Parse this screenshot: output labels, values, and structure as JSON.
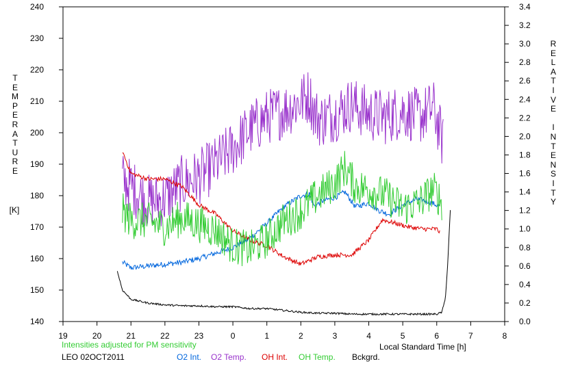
{
  "chart_data": {
    "type": "line",
    "note": "Intensities adjusted for PM sensitivity",
    "station": "LEO 02OCT2011",
    "xlabel": "Local Standard Time [h]",
    "xticks": [
      "19",
      "20",
      "21",
      "22",
      "23",
      "0",
      "1",
      "2",
      "3",
      "4",
      "5",
      "6",
      "7",
      "8"
    ],
    "xlim": [
      19,
      32
    ],
    "ylabel_left_letters": [
      "T",
      "E",
      "M",
      "P",
      "E",
      "R",
      "A",
      "T",
      "U",
      "R",
      "E"
    ],
    "ylabel_left_unit": "[K]",
    "yticks_left": [
      "140",
      "150",
      "160",
      "170",
      "180",
      "190",
      "200",
      "210",
      "220",
      "230",
      "240"
    ],
    "ylim_left": [
      140,
      240
    ],
    "ylabel_right_words": [
      [
        "R",
        "E",
        "L",
        "A",
        "T",
        "I",
        "V",
        "E"
      ],
      [
        "I",
        "N",
        "T",
        "E",
        "N",
        "S",
        "I",
        "T",
        "Y"
      ]
    ],
    "yticks_right": [
      "0.0",
      "0.2",
      "0.4",
      "0.6",
      "0.8",
      "1.0",
      "1.2",
      "1.4",
      "1.6",
      "1.8",
      "2.0",
      "2.2",
      "2.4",
      "2.6",
      "2.8",
      "3.0",
      "3.2",
      "3.4"
    ],
    "ylim_right": [
      0,
      3.4
    ],
    "series": [
      {
        "name": "O2 Int.",
        "axis": "right",
        "color": "#0066dd",
        "noise": 0.03,
        "points": [
          [
            20.75,
            0.64
          ],
          [
            21.0,
            0.58
          ],
          [
            21.5,
            0.6
          ],
          [
            22.0,
            0.62
          ],
          [
            22.5,
            0.64
          ],
          [
            23.0,
            0.68
          ],
          [
            23.5,
            0.74
          ],
          [
            24.0,
            0.8
          ],
          [
            24.5,
            0.9
          ],
          [
            25.0,
            1.06
          ],
          [
            25.5,
            1.24
          ],
          [
            26.0,
            1.36
          ],
          [
            26.25,
            1.38
          ],
          [
            26.4,
            1.24
          ],
          [
            26.6,
            1.3
          ],
          [
            27.0,
            1.34
          ],
          [
            27.3,
            1.4
          ],
          [
            27.6,
            1.24
          ],
          [
            28.0,
            1.28
          ],
          [
            28.3,
            1.2
          ],
          [
            28.6,
            1.16
          ],
          [
            29.0,
            1.26
          ],
          [
            29.4,
            1.32
          ],
          [
            29.75,
            1.3
          ],
          [
            30.1,
            1.24
          ]
        ]
      },
      {
        "name": "O2 Temp.",
        "axis": "left",
        "color": "#9933cc",
        "noise": 9,
        "points": [
          [
            20.75,
            185
          ],
          [
            21.0,
            183
          ],
          [
            21.5,
            178
          ],
          [
            22.0,
            179
          ],
          [
            22.5,
            184
          ],
          [
            23.0,
            186
          ],
          [
            23.5,
            190
          ],
          [
            24.0,
            195
          ],
          [
            24.5,
            201
          ],
          [
            25.0,
            205
          ],
          [
            25.5,
            207
          ],
          [
            26.0,
            210
          ],
          [
            26.25,
            212
          ],
          [
            26.4,
            206
          ],
          [
            26.6,
            204
          ],
          [
            27.0,
            206
          ],
          [
            27.5,
            209
          ],
          [
            28.0,
            206
          ],
          [
            28.5,
            205
          ],
          [
            29.0,
            207
          ],
          [
            29.5,
            205
          ],
          [
            29.9,
            208
          ],
          [
            30.2,
            196
          ]
        ]
      },
      {
        "name": "OH Int.",
        "axis": "right",
        "color": "#dd0000",
        "noise": 0.025,
        "points": [
          [
            20.75,
            1.84
          ],
          [
            21.0,
            1.6
          ],
          [
            21.5,
            1.54
          ],
          [
            22.0,
            1.54
          ],
          [
            22.5,
            1.46
          ],
          [
            23.0,
            1.26
          ],
          [
            23.5,
            1.16
          ],
          [
            24.0,
            0.98
          ],
          [
            24.5,
            0.88
          ],
          [
            25.0,
            0.82
          ],
          [
            25.5,
            0.7
          ],
          [
            26.0,
            0.62
          ],
          [
            26.5,
            0.7
          ],
          [
            27.0,
            0.72
          ],
          [
            27.5,
            0.72
          ],
          [
            28.0,
            0.88
          ],
          [
            28.4,
            1.1
          ],
          [
            28.8,
            1.06
          ],
          [
            29.2,
            1.02
          ],
          [
            29.6,
            1.0
          ],
          [
            30.0,
            1.0
          ],
          [
            30.1,
            0.96
          ]
        ]
      },
      {
        "name": "OH Temp.",
        "axis": "left",
        "color": "#33cc33",
        "noise": 6,
        "points": [
          [
            20.75,
            175
          ],
          [
            21.0,
            172
          ],
          [
            21.5,
            172
          ],
          [
            22.0,
            170
          ],
          [
            22.5,
            173
          ],
          [
            23.0,
            171
          ],
          [
            23.5,
            169
          ],
          [
            24.0,
            164
          ],
          [
            24.5,
            163
          ],
          [
            25.0,
            166
          ],
          [
            25.5,
            172
          ],
          [
            26.0,
            175
          ],
          [
            26.5,
            180
          ],
          [
            27.0,
            184
          ],
          [
            27.3,
            189
          ],
          [
            27.6,
            183
          ],
          [
            28.0,
            182
          ],
          [
            28.5,
            180
          ],
          [
            29.0,
            176
          ],
          [
            29.5,
            178
          ],
          [
            29.9,
            182
          ],
          [
            30.15,
            178
          ]
        ]
      },
      {
        "name": "Bckgrd.",
        "axis": "right",
        "color": "#000000",
        "noise": 0.01,
        "points": [
          [
            20.6,
            0.54
          ],
          [
            20.75,
            0.34
          ],
          [
            21.0,
            0.24
          ],
          [
            21.5,
            0.2
          ],
          [
            22.0,
            0.18
          ],
          [
            22.5,
            0.17
          ],
          [
            23.0,
            0.17
          ],
          [
            23.5,
            0.16
          ],
          [
            24.0,
            0.16
          ],
          [
            24.5,
            0.14
          ],
          [
            25.0,
            0.14
          ],
          [
            25.5,
            0.12
          ],
          [
            26.0,
            0.1
          ],
          [
            26.5,
            0.09
          ],
          [
            27.0,
            0.09
          ],
          [
            27.5,
            0.08
          ],
          [
            28.0,
            0.08
          ],
          [
            28.5,
            0.08
          ],
          [
            29.0,
            0.08
          ],
          [
            29.5,
            0.08
          ],
          [
            30.0,
            0.08
          ],
          [
            30.15,
            0.1
          ],
          [
            30.25,
            0.24
          ],
          [
            30.32,
            0.6
          ],
          [
            30.4,
            1.2
          ]
        ]
      }
    ]
  }
}
